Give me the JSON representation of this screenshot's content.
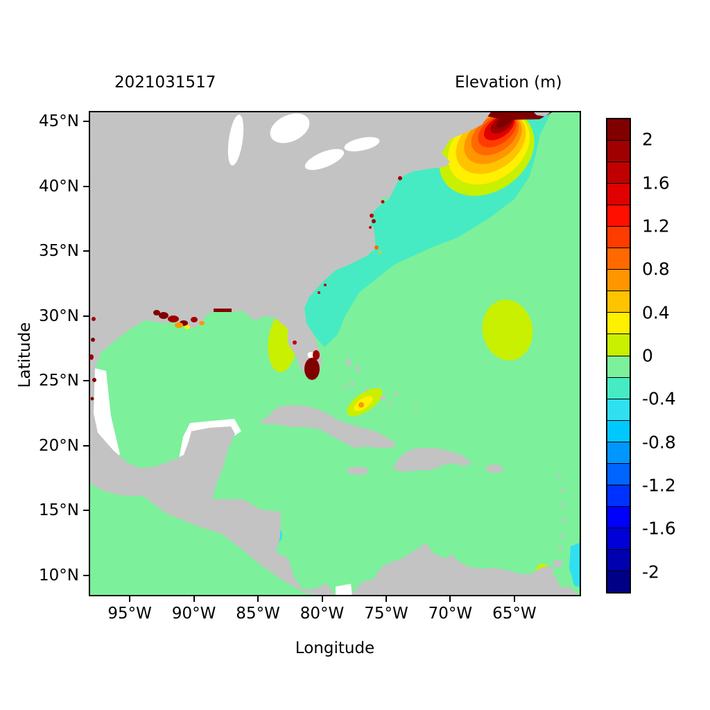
{
  "header": {
    "left_title": "2021031517",
    "right_title": "Elevation (m)"
  },
  "axes": {
    "x_label": "Longitude",
    "y_label": "Latitude"
  },
  "chart_data": {
    "type": "heatmap",
    "title": "Elevation (m)",
    "timestamp_label": "2021031517",
    "xlabel": "Longitude",
    "ylabel": "Latitude",
    "grid": false,
    "legend_position": "right-colorbar",
    "axis_ranges": {
      "lon_min": -98.2,
      "lon_max": -59.8,
      "lat_min": 8.4,
      "lat_max": 45.8
    },
    "xticks": [
      {
        "value": -95,
        "label": "95°W"
      },
      {
        "value": -90,
        "label": "90°W"
      },
      {
        "value": -85,
        "label": "85°W"
      },
      {
        "value": -80,
        "label": "80°W"
      },
      {
        "value": -75,
        "label": "75°W"
      },
      {
        "value": -70,
        "label": "70°W"
      },
      {
        "value": -65,
        "label": "65°W"
      }
    ],
    "yticks": [
      {
        "value": 45,
        "label": "45°N"
      },
      {
        "value": 40,
        "label": "40°N"
      },
      {
        "value": 35,
        "label": "35°N"
      },
      {
        "value": 30,
        "label": "30°N"
      },
      {
        "value": 25,
        "label": "25°N"
      },
      {
        "value": 20,
        "label": "20°N"
      },
      {
        "value": 15,
        "label": "15°N"
      },
      {
        "value": 10,
        "label": "10°N"
      }
    ],
    "colorbar": {
      "units": "m",
      "level_min": -2.2,
      "level_max": 2.2,
      "level_step": 0.2,
      "tick_labels": [
        "2",
        "1.6",
        "1.2",
        "0.8",
        "0.4",
        "0",
        "-0.4",
        "-0.8",
        "-1.2",
        "-1.6",
        "-2"
      ],
      "colors_top_to_bottom": [
        "#800000",
        "#A00000",
        "#C00000",
        "#E00000",
        "#FF0F00",
        "#FF3C00",
        "#FF6900",
        "#FF9600",
        "#FFC300",
        "#FFF000",
        "#C8F000",
        "#7DF09B",
        "#46EBC3",
        "#30E0F0",
        "#00C8FF",
        "#0096FF",
        "#0064FF",
        "#0032FF",
        "#0000FF",
        "#0000D7",
        "#0000AF",
        "#000087"
      ]
    },
    "map_colors": {
      "land": "#C3C3C3",
      "no_data": "#FFFFFF",
      "frame": "#000000",
      "ocean_near_zero": "#7DF09B"
    },
    "features": [
      {
        "region": "Gulf of Maine / Bay of Fundy (~67°W, 44°N)",
        "elevation_m": "+0.4 to >+2, dark-red maximum core along 45°N"
      },
      {
        "region": "Mid-Atlantic Bight and US southeast shelf (74-64°W, 28-45°N)",
        "elevation_m": "-0.2 to -0.4 (aqua band)"
      },
      {
        "region": "Open western North Atlantic, Gulf of Mexico, Caribbean",
        "elevation_m": "about -0.1 to 0 (light green)"
      },
      {
        "region": "Louisiana / Mississippi coast (92-89°W, ~29.5°N)",
        "elevation_m": "+0.4 to >+2 coastal pockets"
      },
      {
        "region": "South Florida coast (~80.5°W, 26°N)",
        "elevation_m": ">+2 coastal pocket"
      },
      {
        "region": "West Florida shelf (~83.5°W, 26-30°N)",
        "elevation_m": "about +0.1 to +0.2"
      },
      {
        "region": "Subtropical patch (~64°W, 27-31°N)",
        "elevation_m": "about +0.1"
      },
      {
        "region": "Band north of Cuba / Old Bahama Channel (~78°W, 22.5°N)",
        "elevation_m": "+0.2 to +0.8"
      },
      {
        "region": "Chesapeake / Delaware / NY estuary dots",
        "elevation_m": "+1 to +2"
      },
      {
        "region": "Venezuela coast spot (~62.5°W, 10°N)",
        "elevation_m": "about +0.2 to +0.4"
      },
      {
        "region": "Eastern boundary strip (~60°W, 9-12°N)",
        "elevation_m": "-0.4 to -0.6 (cyan)"
      }
    ]
  }
}
